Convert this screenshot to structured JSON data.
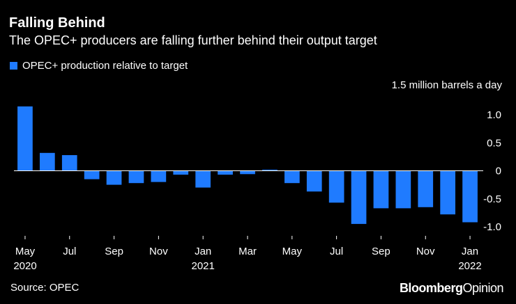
{
  "title": "Falling Behind",
  "subtitle": "The OPEC+ producers are falling further behind their output target",
  "source": "Source: OPEC",
  "brand": {
    "part1": "Bloomberg",
    "part2": "Opinion"
  },
  "colors": {
    "bar": "#1f7bff",
    "background": "#000000",
    "text": "#ffffff",
    "grid": "#3a3a3a"
  },
  "chart_data": {
    "type": "bar",
    "unit_label": "1.5 million barrels a day",
    "legend": [
      {
        "name": "OPEC+ production relative to target",
        "color": "#1f7bff"
      }
    ],
    "legend_position": "top-left",
    "categories": [
      "May 2020",
      "Jun 2020",
      "Jul 2020",
      "Aug 2020",
      "Sep 2020",
      "Oct 2020",
      "Nov 2020",
      "Dec 2020",
      "Jan 2021",
      "Feb 2021",
      "Mar 2021",
      "Apr 2021",
      "May 2021",
      "Jun 2021",
      "Jul 2021",
      "Aug 2021",
      "Sep 2021",
      "Oct 2021",
      "Nov 2021",
      "Dec 2021",
      "Jan 2022"
    ],
    "series": [
      {
        "name": "OPEC+ production relative to target",
        "values": [
          1.15,
          0.32,
          0.28,
          -0.15,
          -0.25,
          -0.22,
          -0.2,
          -0.07,
          -0.3,
          -0.07,
          -0.06,
          0.02,
          -0.22,
          -0.37,
          -0.57,
          -0.95,
          -0.67,
          -0.67,
          -0.65,
          -0.78,
          -0.92
        ]
      }
    ],
    "ylim": [
      -1.05,
      1.25
    ],
    "yticks": [
      {
        "value": 1.0,
        "label": "1.0"
      },
      {
        "value": 0.5,
        "label": "0.5"
      },
      {
        "value": 0,
        "label": "0"
      },
      {
        "value": -0.5,
        "label": "-0.5"
      },
      {
        "value": -1.0,
        "label": "-1.0"
      }
    ],
    "xticks": [
      {
        "index": 0,
        "label": "May",
        "year": "2020"
      },
      {
        "index": 2,
        "label": "Jul",
        "year": ""
      },
      {
        "index": 4,
        "label": "Sep",
        "year": ""
      },
      {
        "index": 6,
        "label": "Nov",
        "year": ""
      },
      {
        "index": 8,
        "label": "Jan",
        "year": "2021"
      },
      {
        "index": 10,
        "label": "Mar",
        "year": ""
      },
      {
        "index": 12,
        "label": "May",
        "year": ""
      },
      {
        "index": 14,
        "label": "Jul",
        "year": ""
      },
      {
        "index": 16,
        "label": "Sep",
        "year": ""
      },
      {
        "index": 18,
        "label": "Nov",
        "year": ""
      },
      {
        "index": 20,
        "label": "Jan",
        "year": "2022"
      }
    ],
    "grid": false
  }
}
